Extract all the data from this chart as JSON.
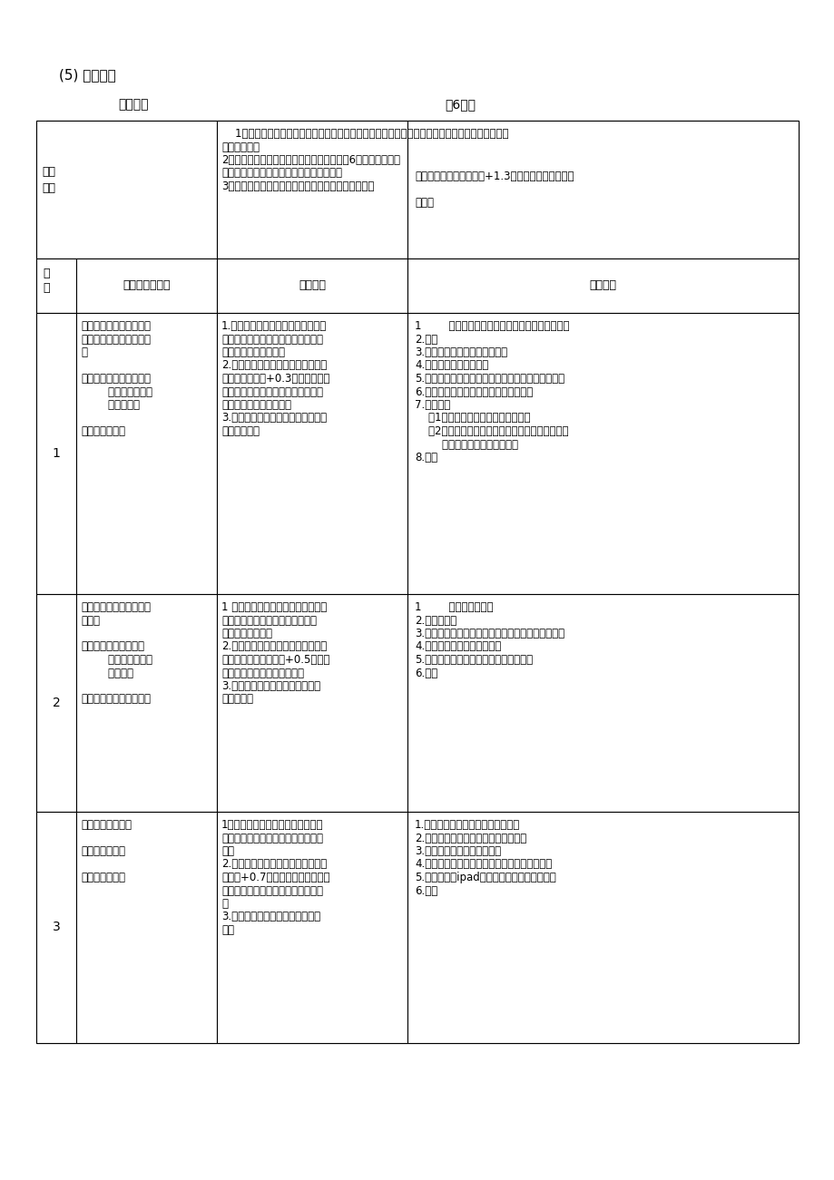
{
  "background_color": "#ffffff",
  "page_title": "(5) 单元目标",
  "subtitle_left": "初一年级",
  "subtitle_right": "共6课次",
  "table": {
    "teaching_goals_left": "教学\n目标",
    "teaching_goals_col2_lines": [
      "    1、知道原地双手头上前掷实心球的技术环节、动作要领、练习方法、影响投掷远度的因素及考核",
      "规则及标准。",
      "2、掌握原地双手头上前掷实心球技术，通过6次课，躯干、腿",
      "部、腰腹、肩带力量，提高爆发力和身体协",
      "3、提高安全意识，培养坚毅果断的意志品质及合作自"
    ],
    "teaching_goals_col3_lines": [
      "投掷成绩达到（前测成绩+1.3米）以上。提高调性。",
      "",
      "当力。"
    ],
    "header_col0": "序\n号",
    "header_col1": "教学内容和重点",
    "header_col2": "教学目标",
    "header_col3": "教法措施",
    "rows": [
      {
        "num": "1",
        "content_lines": [
          "学习预备姿势和持握球方",
          "法，初步学习最后用力技",
          "术",
          "",
          "重点：腰腹、肩带、手臂",
          "        的快速发力，提",
          "        高出手速度",
          "",
          "难点：用力顺序"
        ],
        "objectives_lines": [
          "1.建立完整的动作概念，知道持握球",
          "的手型、预备姿势的动作要领以及提",
          "高出手速度的练习方法",
          "2.初步掌握最后用力技术，投掷成绩",
          "达到（前测成绩+0.3米）以上；提",
          "高腰腹、躯干、肩带、手指手腕的力",
          "量及身体协调性和爆发力",
          "3.培养安全意识、超越自我的精神及",
          "团结合作能力"
        ],
        "methods_lines": [
          "1        ，教师示范前掷实心球动作并简单讲解要点",
          "2.前测",
          "3.单膝跪姿肩带及腰腹抗阻练习",
          "4.仰卧全身用力抗阻练习",
          "5.仰卧起坐前掷实心球（采用持握球动作进行投掷）",
          "6.前掷实心球（采用预备姿势进行投掷）",
          "7.分层练习",
          "    （1）掌握较好的同学进行投掷比赛",
          "    （2）力量不足，脱手等同学进行站立抗阻练习或",
          "        仰卧前掷实心球等练习形式",
          "8.检测"
        ]
      },
      {
        "num": "2",
        "content_lines": [
          "学习预摆，进一步学习最",
          "后用力",
          "",
          "重点：第二次预摆的幅",
          "        度；出手高度及",
          "        用力顺序",
          "",
          "难点：蹬地、送胯、挺胸"
        ],
        "objectives_lines": [
          "1 知道预摆的技术方法；知道出手高",
          "度是影响投掷远度的重要因素及出",
          "手高度的练习方法",
          "2.掌握预摆技术，出手高度合理，投",
          "掷成绩达到（前测成绩+0.5米）以",
          "上，提高身体协调性及爆发力",
          "3.培养超越自我的精神及互帮互助",
          "的良好品格"
        ],
        "methods_lines": [
          "1        ，徒手预摆练习",
          "2.预摆掷排球",
          "3.击标识练习（在墙上贴上与出手高度一致的标识）",
          "4.两人一组徒手模仿抗阻练习",
          "5.预摆掷实心球过线（空中标志线）练习",
          "6.检测"
        ]
      },
      {
        "num": "3",
        "content_lines": [
          "巩固最后用力技术",
          "",
          "重点：出手角度",
          "",
          "难点：协调用力"
        ],
        "objectives_lines": [
          "1、知道出手角度是影响投掷远度的",
          "重要因素，知道出手角度的几种练习",
          "方法",
          "2.出手角度合理，投掷成绩达到（前",
          "测成绩+0.7米）以上，提高身体协",
          "调性和躯干、腰腹、腿部、上肢的力",
          "量",
          "3.培养超越自我的精神及团结合作",
          "能力"
        ],
        "methods_lines": [
          "1.前掷排球过线（空中标志线）练习",
          "2.前掷实心球过线（空中标志线）练习",
          "3.两人一组徒手模仿抗阻练习",
          "4.前掷实心球投准练习（墙上挂不同高度垫子）",
          "5.投掷比赛（ipad录制投掷动作，分组讨论）",
          "6.检测"
        ]
      }
    ]
  }
}
